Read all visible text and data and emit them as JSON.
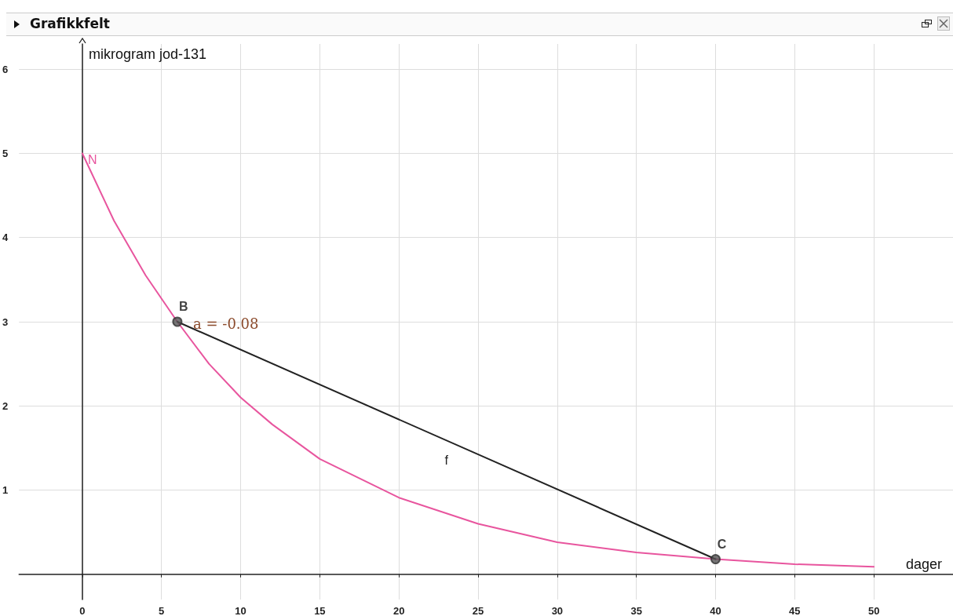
{
  "chart_data": {
    "type": "line",
    "title": "Grafikkfelt",
    "xlabel": "dager",
    "ylabel": "mikrogram jod-131",
    "xlim": [
      -4,
      55
    ],
    "ylim": [
      -0.3,
      6.3
    ],
    "xticks": [
      0,
      5,
      10,
      15,
      20,
      25,
      30,
      35,
      40,
      45,
      50
    ],
    "yticks": [
      1,
      2,
      3,
      4,
      5,
      6
    ],
    "grid": true,
    "marker": "none",
    "series": [
      {
        "name": "N",
        "color": "#e8559e",
        "x": [
          0,
          2,
          4,
          6,
          8,
          10,
          12,
          15,
          20,
          25,
          30,
          35,
          40,
          45,
          50
        ],
        "values": [
          5,
          4.2,
          3.55,
          3.0,
          2.5,
          2.1,
          1.78,
          1.37,
          0.91,
          0.6,
          0.38,
          0.26,
          0.18,
          0.12,
          0.09
        ]
      },
      {
        "name": "f",
        "color": "#222222",
        "x": [
          6,
          40
        ],
        "values": [
          3,
          0.18
        ]
      },
      {
        "name": "B",
        "type": "scatter",
        "marker": "circle",
        "color": "#333333",
        "x": [
          6
        ],
        "values": [
          3
        ]
      },
      {
        "name": "C",
        "type": "scatter",
        "marker": "circle",
        "color": "#333333",
        "x": [
          40
        ],
        "values": [
          0.18
        ]
      }
    ],
    "annotations": [
      {
        "text": "a = -0.08",
        "x": 7,
        "y": 2.95
      }
    ]
  }
}
